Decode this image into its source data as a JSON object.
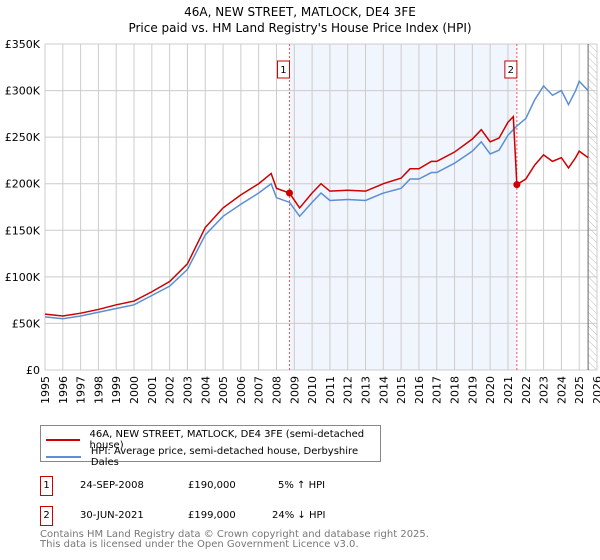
{
  "chart_data": {
    "type": "line",
    "title": "46A, NEW STREET, MATLOCK, DE4 3FE",
    "subtitle": "Price paid vs. HM Land Registry's House Price Index (HPI)",
    "xlim": [
      1995,
      2026
    ],
    "ylim": [
      0,
      350000
    ],
    "grid": true,
    "x_ticks": [
      "1995",
      "1996",
      "1997",
      "1998",
      "1999",
      "2000",
      "2001",
      "2002",
      "2003",
      "2004",
      "2005",
      "2006",
      "2007",
      "2008",
      "2009",
      "2010",
      "2011",
      "2012",
      "2013",
      "2014",
      "2015",
      "2016",
      "2017",
      "2018",
      "2019",
      "2020",
      "2021",
      "2022",
      "2023",
      "2024",
      "2025",
      "2026"
    ],
    "y_ticks": [
      {
        "v": 0,
        "l": "£0"
      },
      {
        "v": 50000,
        "l": "£50K"
      },
      {
        "v": 100000,
        "l": "£100K"
      },
      {
        "v": 150000,
        "l": "£150K"
      },
      {
        "v": 200000,
        "l": "£200K"
      },
      {
        "v": 250000,
        "l": "£250K"
      },
      {
        "v": 300000,
        "l": "£300K"
      },
      {
        "v": 350000,
        "l": "£350K"
      }
    ],
    "x": [
      1995,
      1996,
      1997,
      1998,
      1999,
      2000,
      2001,
      2002,
      2003,
      2004,
      2005,
      2006,
      2007,
      2007.7,
      2008,
      2008.73,
      2009.3,
      2010,
      2010.5,
      2011,
      2012,
      2013,
      2014,
      2015,
      2015.5,
      2016,
      2016.7,
      2017,
      2018,
      2019,
      2019.5,
      2020,
      2020.5,
      2021,
      2021.3,
      2021.5,
      2022,
      2022.5,
      2023,
      2023.5,
      2024,
      2024.4,
      2024.8,
      2025,
      2025.5
    ],
    "series": [
      {
        "name": "46A, NEW STREET, MATLOCK, DE4 3FE (semi-detached house)",
        "color": "#cc0000",
        "values": [
          60,
          58,
          61,
          65,
          70,
          74,
          84,
          95,
          114,
          153,
          174,
          188,
          200,
          211,
          195,
          190,
          174,
          190,
          200,
          192,
          193,
          192,
          200,
          206,
          216,
          216,
          224,
          224,
          234,
          248,
          258,
          245,
          249,
          266,
          272,
          199,
          205,
          220,
          231,
          224,
          228,
          217,
          228,
          235,
          228
        ]
      },
      {
        "name": "HPI: Average price, semi-detached house, Derbyshire Dales",
        "color": "#5b8fd4",
        "values": [
          57,
          55,
          58,
          62,
          66,
          70,
          80,
          90,
          108,
          145,
          165,
          178,
          190,
          200,
          185,
          180,
          165,
          180,
          190,
          182,
          183,
          182,
          190,
          195,
          205,
          205,
          212,
          212,
          222,
          235,
          245,
          232,
          236,
          252,
          258,
          262,
          270,
          290,
          305,
          295,
          300,
          285,
          300,
          310,
          300
        ]
      }
    ],
    "value_unit": "£K",
    "sales": [
      {
        "label": "1",
        "x": 2008.73,
        "price": 190
      },
      {
        "label": "2",
        "x": 2021.5,
        "price": 199
      }
    ],
    "shaded_range": [
      2008.73,
      2021.5
    ],
    "hatched_from": 2025.5,
    "legend_position": "below"
  },
  "transactions": [
    {
      "num": "1",
      "date": "24-SEP-2008",
      "price": "£190,000",
      "hpi": "5% ↑ HPI"
    },
    {
      "num": "2",
      "date": "30-JUN-2021",
      "price": "£199,000",
      "hpi": "24% ↓ HPI"
    }
  ],
  "footer": {
    "line1": "Contains HM Land Registry data © Crown copyright and database right 2025.",
    "line2": "This data is licensed under the Open Government Licence v3.0."
  }
}
